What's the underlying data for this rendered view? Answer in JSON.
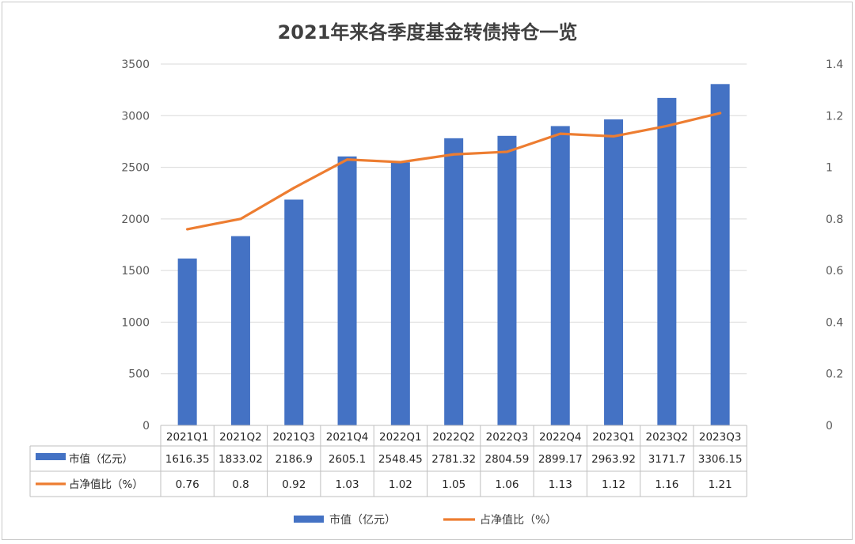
{
  "chart_data": {
    "type": "bar",
    "title": "2021年来各季度基金转债持仓一览",
    "categories": [
      "2021Q1",
      "2021Q2",
      "2021Q3",
      "2021Q4",
      "2022Q1",
      "2022Q2",
      "2022Q3",
      "2022Q4",
      "2023Q1",
      "2023Q2",
      "2023Q3"
    ],
    "series": [
      {
        "name": "市值（亿元）",
        "type": "bar",
        "axis": "left",
        "color": "#4472C4",
        "values": [
          1616.35,
          1833.02,
          2186.9,
          2605.1,
          2548.45,
          2781.32,
          2804.59,
          2899.17,
          2963.92,
          3171.7,
          3306.15
        ],
        "labels": [
          "1616.35",
          "1833.02",
          "2186.9",
          "2605.1",
          "2548.45",
          "2781.32",
          "2804.59",
          "2899.17",
          "2963.92",
          "3171.7",
          "3306.15"
        ]
      },
      {
        "name": "占净值比（%）",
        "type": "line",
        "axis": "right",
        "color": "#ED7D31",
        "values": [
          0.76,
          0.8,
          0.92,
          1.03,
          1.02,
          1.05,
          1.06,
          1.13,
          1.12,
          1.16,
          1.21
        ],
        "labels": [
          "0.76",
          "0.8",
          "0.92",
          "1.03",
          "1.02",
          "1.05",
          "1.06",
          "1.13",
          "1.12",
          "1.16",
          "1.21"
        ]
      }
    ],
    "y_left": {
      "min": 0,
      "max": 3500,
      "ticks": [
        "0",
        "500",
        "1000",
        "1500",
        "2000",
        "2500",
        "3000",
        "3500"
      ]
    },
    "y_right": {
      "min": 0,
      "max": 1.4,
      "ticks": [
        "0",
        "0.2",
        "0.4",
        "0.6",
        "0.8",
        "1",
        "1.2",
        "1.4"
      ]
    },
    "grid": true,
    "data_table": true,
    "legend_position": "bottom"
  }
}
